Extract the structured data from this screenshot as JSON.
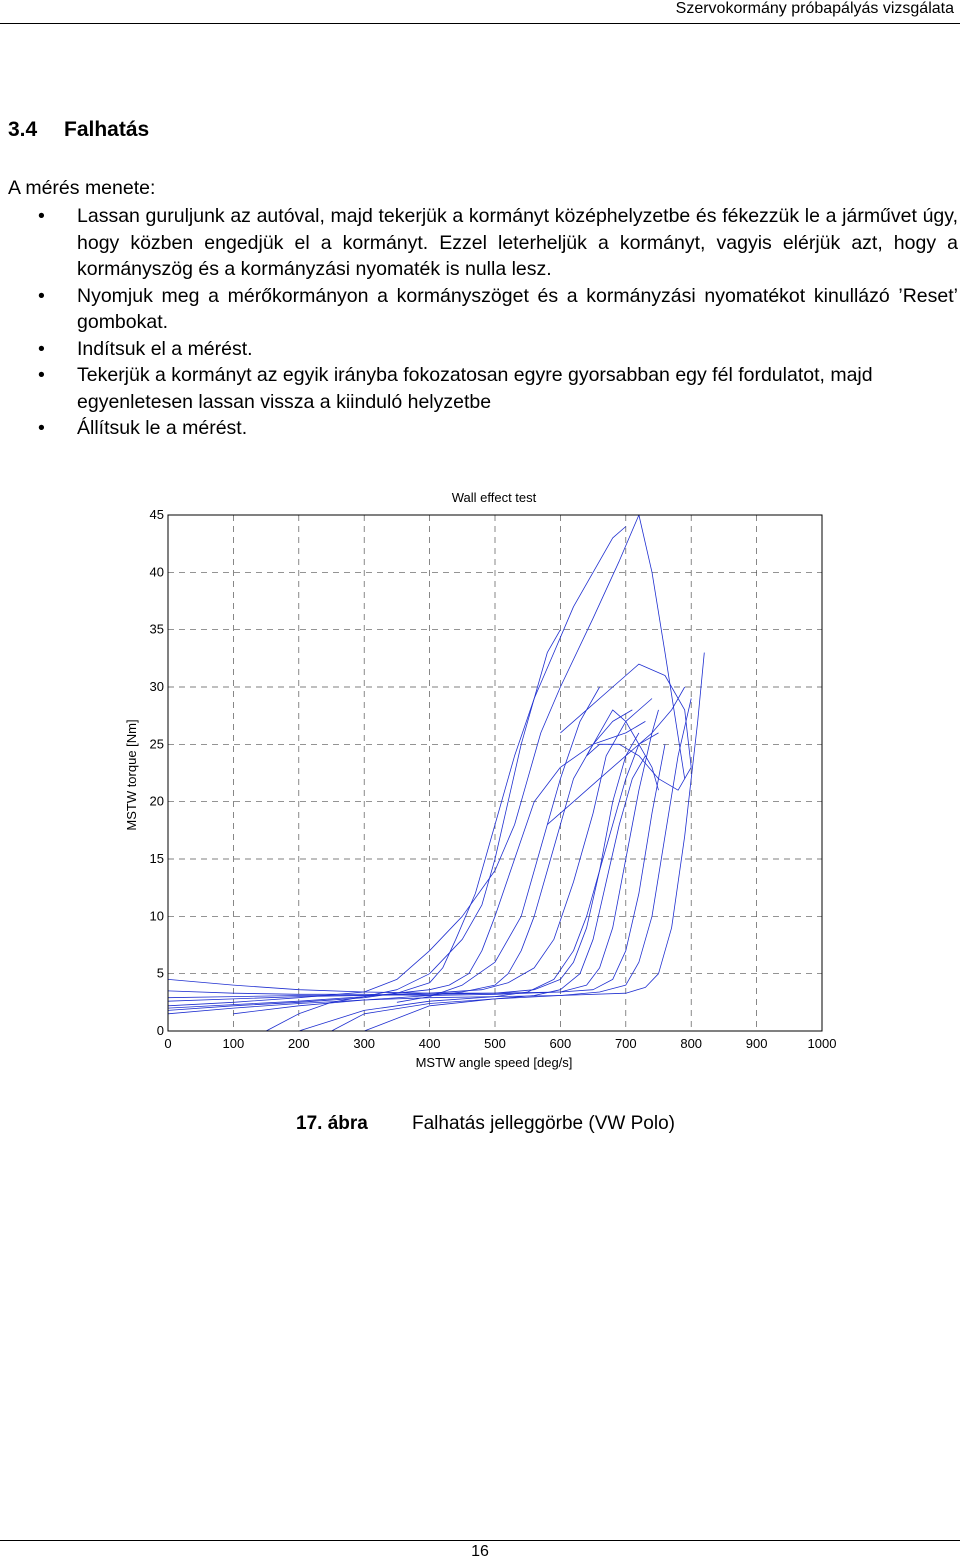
{
  "header": {
    "running_title": "Szervokormány próbapályás vizsgálata"
  },
  "section": {
    "number": "3.4",
    "title": "Falhatás"
  },
  "intro": "A mérés menete:",
  "steps": [
    "Lassan guruljunk az autóval, majd tekerjük a kormányt középhelyzetbe és fékezzük le a járművet úgy, hogy közben engedjük el a kormányt. Ezzel leterheljük a kormányt, vagyis elérjük azt, hogy a kormányszög és a kormányzási nyomaték is nulla lesz.",
    "Nyomjuk meg a mérőkormányon a kormányszöget és a kormányzási nyomatékot kinullázó ’Reset’ gombokat.",
    "Indítsuk el a mérést.",
    "Tekerjük a kormányt az egyik irányba fokozatosan egyre gyorsabban egy fél fordulatot, majd egyenletesen lassan vissza a kiinduló helyzetbe",
    "Állítsuk le a mérést."
  ],
  "chart_data": {
    "type": "line",
    "title": "Wall effect test",
    "xlabel": "MSTW angle speed [deg/s]",
    "ylabel": "MSTW torque [Nm]",
    "xlim": [
      0,
      1000
    ],
    "ylim": [
      0,
      45
    ],
    "xticks": [
      "0",
      "100",
      "200",
      "300",
      "400",
      "500",
      "600",
      "700",
      "800",
      "900",
      "1000"
    ],
    "yticks": [
      "0",
      "5",
      "10",
      "15",
      "20",
      "25",
      "30",
      "35",
      "40",
      "45"
    ],
    "grid": true,
    "line_color": "#1f2fd0",
    "series": [
      {
        "x": [
          0,
          100,
          200,
          300,
          350,
          400,
          450,
          500,
          530,
          550,
          570,
          600,
          650,
          690,
          720,
          740,
          760,
          790
        ],
        "y": [
          2.2,
          2.5,
          2.9,
          3.4,
          4.5,
          7,
          10,
          14,
          18,
          22,
          26,
          30,
          36,
          41,
          45,
          40,
          33,
          22
        ]
      },
      {
        "x": [
          0,
          100,
          200,
          300,
          350,
          400,
          420,
          440,
          470,
          500,
          530,
          560,
          590,
          620,
          650,
          680,
          700
        ],
        "y": [
          1.8,
          2.2,
          2.5,
          2.9,
          3.3,
          4.2,
          5.5,
          8,
          12,
          18,
          24,
          29,
          33,
          37,
          40,
          43,
          44
        ]
      },
      {
        "x": [
          0,
          100,
          200,
          300,
          350,
          400,
          450,
          480,
          500,
          520,
          540,
          560,
          580,
          600
        ],
        "y": [
          2.0,
          2.3,
          2.6,
          3.0,
          3.6,
          5,
          8,
          11,
          15,
          20,
          25,
          29,
          33,
          35
        ]
      },
      {
        "x": [
          150,
          200,
          250,
          300,
          350,
          400,
          430,
          460,
          480,
          500,
          530,
          560,
          600,
          650,
          700,
          730
        ],
        "y": [
          0,
          1.5,
          2.5,
          3.0,
          3.3,
          3.6,
          4.0,
          5,
          7,
          10,
          15,
          20,
          23,
          25,
          26,
          27
        ]
      },
      {
        "x": [
          100,
          200,
          300,
          400,
          450,
          500,
          520,
          540,
          560,
          580,
          600,
          620,
          650,
          680,
          710
        ],
        "y": [
          1.5,
          2.2,
          2.7,
          3.1,
          3.4,
          4.0,
          5,
          7,
          10,
          14,
          18,
          22,
          25,
          27,
          28
        ]
      },
      {
        "x": [
          0,
          100,
          200,
          300,
          400,
          480,
          520,
          560,
          590,
          620,
          650,
          670,
          700,
          740
        ],
        "y": [
          2.6,
          2.8,
          3.0,
          3.1,
          3.3,
          3.6,
          4.2,
          5.5,
          8,
          13,
          19,
          24,
          27,
          29
        ]
      },
      {
        "x": [
          200,
          300,
          400,
          500,
          550,
          590,
          620,
          640,
          660,
          680,
          700,
          720,
          750
        ],
        "y": [
          0,
          1.8,
          2.6,
          3.0,
          3.4,
          4.5,
          7,
          10,
          14,
          18,
          22,
          25,
          26
        ]
      },
      {
        "x": [
          0,
          100,
          200,
          300,
          400,
          500,
          560,
          600,
          620,
          640,
          660,
          680,
          700,
          720
        ],
        "y": [
          2.9,
          3.0,
          3.1,
          3.1,
          3.2,
          3.3,
          3.6,
          4.5,
          6,
          9,
          14,
          20,
          24,
          26
        ]
      },
      {
        "x": [
          250,
          300,
          400,
          500,
          560,
          600,
          630,
          650,
          670,
          690,
          710,
          730
        ],
        "y": [
          0,
          1.5,
          2.4,
          2.8,
          3.1,
          3.6,
          5,
          8,
          13,
          18,
          22,
          24
        ]
      },
      {
        "x": [
          0,
          100,
          200,
          300,
          400,
          500,
          600,
          640,
          660,
          680,
          700,
          720,
          740,
          750
        ],
        "y": [
          3.5,
          3.3,
          3.2,
          3.2,
          3.1,
          3.2,
          3.4,
          4,
          5.5,
          9,
          15,
          21,
          26,
          28
        ]
      },
      {
        "x": [
          0,
          100,
          200,
          300,
          400,
          500,
          600,
          650,
          680,
          700,
          720,
          740,
          760
        ],
        "y": [
          4.5,
          4.0,
          3.6,
          3.4,
          3.3,
          3.3,
          3.4,
          3.6,
          4.5,
          7,
          12,
          19,
          25
        ]
      },
      {
        "x": [
          300,
          400,
          500,
          600,
          660,
          700,
          720,
          740,
          760,
          780,
          800
        ],
        "y": [
          0,
          2.2,
          2.8,
          3.1,
          3.4,
          4,
          6,
          10,
          17,
          24,
          29
        ]
      },
      {
        "x": [
          0,
          100,
          200,
          300,
          400,
          500,
          600,
          700,
          730,
          750,
          770,
          790,
          810,
          820
        ],
        "y": [
          1.5,
          2.0,
          2.4,
          2.7,
          2.9,
          3.0,
          3.1,
          3.3,
          3.8,
          5,
          9,
          17,
          27,
          33
        ]
      },
      {
        "x": [
          350,
          400,
          450,
          500,
          540,
          570,
          600,
          630,
          660
        ],
        "y": [
          2.5,
          3,
          4,
          6,
          10,
          16,
          22,
          27,
          30
        ]
      },
      {
        "x": [
          600,
          640,
          680,
          720,
          760,
          790,
          800,
          780,
          750,
          720,
          690,
          660,
          640
        ],
        "y": [
          26,
          28,
          30,
          32,
          31,
          28,
          23,
          21,
          22,
          24,
          25,
          25,
          24
        ]
      },
      {
        "x": [
          640,
          660,
          680,
          700,
          720,
          740,
          750
        ],
        "y": [
          24,
          26,
          28,
          27,
          25,
          23,
          21
        ]
      },
      {
        "x": [
          580,
          620,
          660,
          700,
          740,
          770,
          790
        ],
        "y": [
          18,
          20,
          22,
          24,
          26,
          28,
          30
        ]
      }
    ]
  },
  "caption": {
    "number": "17. ábra",
    "text": "Falhatás jelleggörbe (VW Polo)"
  },
  "footer": {
    "page_number": "16"
  }
}
